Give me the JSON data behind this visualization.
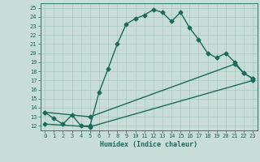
{
  "xlabel": "Humidex (Indice chaleur)",
  "bg_color": "#c8ddd8",
  "line_color": "#1a6b5a",
  "grid_color": "#a8c8c0",
  "xlim": [
    -0.5,
    23.5
  ],
  "ylim": [
    11.5,
    25.5
  ],
  "xticks": [
    0,
    1,
    2,
    3,
    4,
    5,
    6,
    7,
    8,
    9,
    10,
    11,
    12,
    13,
    14,
    15,
    16,
    17,
    18,
    19,
    20,
    21,
    22,
    23
  ],
  "yticks": [
    12,
    13,
    14,
    15,
    16,
    17,
    18,
    19,
    20,
    21,
    22,
    23,
    24,
    25
  ],
  "line1_x": [
    0,
    1,
    2,
    3,
    4,
    5,
    6,
    7,
    8,
    9,
    10,
    11,
    12,
    13,
    14,
    15,
    16,
    17,
    18,
    19,
    20,
    21,
    22,
    23
  ],
  "line1_y": [
    13.5,
    12.8,
    12.2,
    13.2,
    12.0,
    12.0,
    15.7,
    18.3,
    21.0,
    23.2,
    23.8,
    24.2,
    24.8,
    24.5,
    23.5,
    24.5,
    22.8,
    21.5,
    20.0,
    19.5,
    20.0,
    19.0,
    17.8,
    17.2
  ],
  "line2_x": [
    0,
    5,
    21,
    22,
    23
  ],
  "line2_y": [
    13.5,
    13.0,
    18.8,
    17.8,
    17.2
  ],
  "line3_x": [
    0,
    5,
    23
  ],
  "line3_y": [
    12.2,
    11.9,
    17.0
  ],
  "marker": "D",
  "marker_size": 2.5,
  "line_width": 1.0,
  "tick_fontsize": 5.0,
  "xlabel_fontsize": 6.0
}
